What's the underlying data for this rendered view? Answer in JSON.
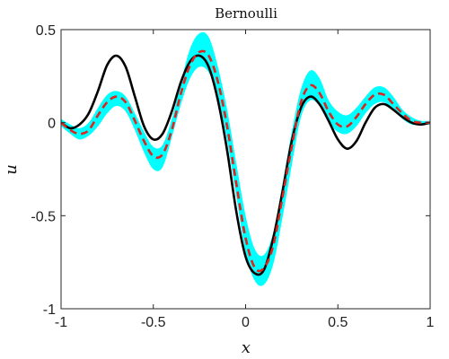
{
  "chart_data": {
    "type": "line",
    "title": "Bernoulli",
    "xlabel": "x",
    "ylabel": "u",
    "xlim": [
      -1,
      1
    ],
    "ylim": [
      -1,
      0.5
    ],
    "xticks": [
      -1,
      -0.5,
      0,
      0.5,
      1
    ],
    "xtick_labels": [
      "-1",
      "-0.5",
      "0",
      "0.5",
      "1"
    ],
    "yticks": [
      -1,
      -0.5,
      0,
      0.5
    ],
    "ytick_labels": [
      "-1",
      "-0.5",
      "0",
      "0.5"
    ],
    "grid": false,
    "colors": {
      "band": "#00ffff",
      "true_line": "#000000",
      "mean_line": "#e0231c",
      "axes": "#262626"
    },
    "x": [
      -1.0,
      -0.95,
      -0.9,
      -0.85,
      -0.8,
      -0.75,
      -0.7,
      -0.65,
      -0.6,
      -0.55,
      -0.5,
      -0.45,
      -0.4,
      -0.35,
      -0.3,
      -0.25,
      -0.2,
      -0.15,
      -0.1,
      -0.05,
      0.0,
      0.05,
      0.1,
      0.15,
      0.2,
      0.25,
      0.3,
      0.35,
      0.4,
      0.45,
      0.5,
      0.55,
      0.6,
      0.65,
      0.7,
      0.75,
      0.8,
      0.85,
      0.9,
      0.95,
      1.0
    ],
    "series": [
      {
        "kind": "band",
        "upper": [
          0.02,
          -0.01,
          -0.03,
          0.0,
          0.08,
          0.15,
          0.17,
          0.14,
          0.05,
          -0.05,
          -0.13,
          -0.12,
          0.02,
          0.22,
          0.4,
          0.48,
          0.46,
          0.3,
          0.07,
          -0.22,
          -0.5,
          -0.68,
          -0.71,
          -0.59,
          -0.33,
          -0.05,
          0.18,
          0.28,
          0.24,
          0.12,
          0.06,
          0.04,
          0.08,
          0.14,
          0.19,
          0.19,
          0.14,
          0.07,
          0.03,
          0.01,
          0.01
        ],
        "lower": [
          -0.02,
          -0.06,
          -0.09,
          -0.07,
          -0.02,
          0.05,
          0.09,
          0.06,
          -0.04,
          -0.16,
          -0.25,
          -0.24,
          -0.08,
          0.1,
          0.24,
          0.3,
          0.27,
          0.14,
          -0.1,
          -0.4,
          -0.7,
          -0.85,
          -0.87,
          -0.76,
          -0.51,
          -0.23,
          0.03,
          0.12,
          0.09,
          0.0,
          -0.05,
          -0.06,
          -0.02,
          0.05,
          0.1,
          0.11,
          0.07,
          0.02,
          -0.01,
          -0.01,
          -0.01
        ]
      },
      {
        "kind": "line",
        "style": "solid",
        "values": [
          0.0,
          -0.03,
          -0.01,
          0.05,
          0.17,
          0.31,
          0.36,
          0.3,
          0.14,
          -0.02,
          -0.09,
          -0.06,
          0.06,
          0.22,
          0.33,
          0.36,
          0.3,
          0.12,
          -0.15,
          -0.48,
          -0.72,
          -0.81,
          -0.79,
          -0.62,
          -0.37,
          -0.1,
          0.08,
          0.14,
          0.1,
          0.01,
          -0.09,
          -0.14,
          -0.1,
          0.0,
          0.08,
          0.1,
          0.07,
          0.03,
          0.0,
          -0.01,
          0.0
        ]
      },
      {
        "kind": "line",
        "style": "dashed",
        "values": [
          0.0,
          -0.04,
          -0.06,
          -0.04,
          0.04,
          0.11,
          0.14,
          0.11,
          0.01,
          -0.1,
          -0.18,
          -0.17,
          -0.04,
          0.16,
          0.31,
          0.38,
          0.36,
          0.22,
          -0.02,
          -0.33,
          -0.62,
          -0.78,
          -0.78,
          -0.66,
          -0.4,
          -0.13,
          0.11,
          0.2,
          0.16,
          0.06,
          -0.01,
          -0.02,
          0.03,
          0.1,
          0.15,
          0.15,
          0.1,
          0.05,
          0.01,
          0.0,
          0.0
        ]
      }
    ]
  }
}
